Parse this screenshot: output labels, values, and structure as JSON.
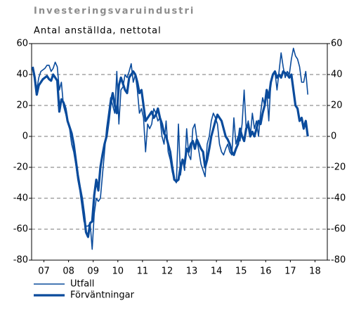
{
  "chart_data": {
    "type": "line",
    "title": "Investeringsvaruindustri",
    "subtitle": "Antal anställda, nettotal",
    "x": [
      0,
      1,
      2,
      3,
      4,
      5,
      6,
      7,
      8,
      9,
      10,
      11,
      12,
      13,
      14,
      15,
      16,
      17,
      18,
      19,
      20,
      21,
      22,
      23,
      24,
      25,
      26,
      27,
      28,
      29,
      30,
      31,
      32,
      33,
      34,
      35,
      36,
      37,
      38,
      39,
      40,
      41,
      42,
      43,
      44,
      45,
      46,
      47,
      48,
      49,
      50,
      51,
      52,
      53,
      54,
      55,
      56,
      57,
      58,
      59,
      60,
      61,
      62,
      63,
      64,
      65,
      66,
      67,
      68,
      69,
      70,
      71,
      72,
      73,
      74,
      75,
      76,
      77,
      78,
      79,
      80,
      81,
      82,
      83,
      84,
      85,
      86,
      87,
      88,
      89,
      90,
      91,
      92,
      93,
      94,
      95,
      96,
      97,
      98,
      99,
      100,
      101,
      102,
      103,
      104,
      105,
      106,
      107,
      108,
      109,
      110,
      111,
      112,
      113,
      114,
      115,
      116,
      117,
      118,
      119,
      120,
      121,
      122,
      123,
      124,
      125,
      126,
      127,
      128,
      129,
      130,
      131,
      132,
      133,
      134
    ],
    "series": [
      {
        "name": "Utfall",
        "color": "#0a4b9c",
        "width": 1.6,
        "values": [
          45,
          40,
          30,
          38,
          42,
          43,
          44,
          46,
          46,
          42,
          44,
          48,
          45,
          30,
          35,
          20,
          15,
          10,
          5,
          -5,
          -10,
          -18,
          -28,
          -35,
          -45,
          -55,
          -58,
          -58,
          -56,
          -73,
          -50,
          -40,
          -42,
          -40,
          -25,
          -10,
          5,
          15,
          25,
          20,
          15,
          42,
          8,
          30,
          32,
          40,
          38,
          42,
          47,
          35,
          40,
          30,
          15,
          18,
          12,
          -10,
          8,
          5,
          8,
          18,
          15,
          10,
          12,
          0,
          -5,
          10,
          -10,
          -15,
          -23,
          -28,
          -30,
          8,
          -25,
          -15,
          -22,
          5,
          -12,
          -15,
          5,
          8,
          -2,
          -10,
          -18,
          -22,
          -26,
          -5,
          0,
          10,
          15,
          12,
          8,
          -5,
          -10,
          -12,
          -8,
          -5,
          -10,
          -12,
          12,
          -5,
          0,
          -3,
          8,
          30,
          5,
          10,
          0,
          15,
          5,
          10,
          0,
          15,
          25,
          20,
          30,
          10,
          35,
          40,
          42,
          30,
          42,
          54,
          45,
          38,
          42,
          40,
          50,
          57,
          52,
          50,
          45,
          35,
          35,
          42,
          27
        ]
      },
      {
        "name": "Förväntningar",
        "color": "#0a4b9c",
        "width": 3.2,
        "values": [
          45,
          38,
          27,
          33,
          35,
          37,
          38,
          39,
          37,
          36,
          40,
          38,
          36,
          16,
          24,
          22,
          18,
          10,
          6,
          2,
          -5,
          -15,
          -25,
          -33,
          -40,
          -50,
          -62,
          -65,
          -56,
          -55,
          -38,
          -28,
          -35,
          -20,
          -12,
          -5,
          0,
          10,
          22,
          28,
          20,
          15,
          33,
          38,
          34,
          30,
          28,
          38,
          40,
          42,
          40,
          35,
          28,
          30,
          20,
          10,
          12,
          14,
          16,
          12,
          14,
          18,
          12,
          8,
          2,
          0,
          -5,
          -10,
          -20,
          -28,
          -29,
          -28,
          -20,
          -15,
          -18,
          -8,
          -10,
          -5,
          -3,
          -8,
          -2,
          -5,
          -8,
          -10,
          -20,
          -15,
          -8,
          0,
          5,
          10,
          14,
          12,
          10,
          5,
          0,
          -2,
          -5,
          -10,
          -12,
          -8,
          -5,
          5,
          0,
          -3,
          5,
          8,
          0,
          3,
          0,
          5,
          10,
          8,
          15,
          20,
          30,
          25,
          35,
          40,
          42,
          38,
          40,
          38,
          42,
          41,
          40,
          38,
          40,
          30,
          20,
          18,
          10,
          12,
          5,
          10,
          0
        ]
      }
    ],
    "xlim": [
      -0.5,
      143.5
    ],
    "xticks": [
      {
        "value": 5.5,
        "label": "07"
      },
      {
        "value": 17.5,
        "label": "08"
      },
      {
        "value": 29.5,
        "label": "09"
      },
      {
        "value": 41.5,
        "label": "10"
      },
      {
        "value": 53.5,
        "label": "11"
      },
      {
        "value": 65.5,
        "label": "12"
      },
      {
        "value": 77.5,
        "label": "13"
      },
      {
        "value": 89.5,
        "label": "14"
      },
      {
        "value": 101.5,
        "label": "15"
      },
      {
        "value": 113.5,
        "label": "16"
      },
      {
        "value": 125.5,
        "label": "17"
      },
      {
        "value": 137.5,
        "label": "18"
      }
    ],
    "ylim": [
      -80,
      60
    ],
    "yticks": [
      -80,
      -60,
      -40,
      -20,
      0,
      20,
      40,
      60
    ],
    "y2lim": [
      -80,
      60
    ],
    "y2ticks": [
      -80,
      -60,
      -40,
      -20,
      0,
      20,
      40,
      60
    ],
    "grid": true,
    "legend": "bottom-left"
  }
}
